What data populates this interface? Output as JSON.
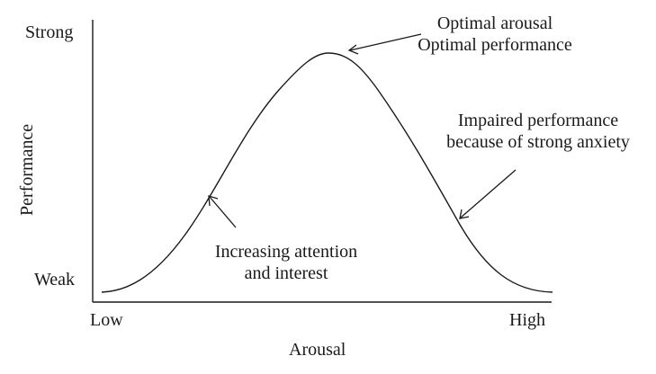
{
  "diagram": {
    "y_axis": {
      "title": "Performance",
      "top_label": "Strong",
      "bottom_label": "Weak"
    },
    "x_axis": {
      "title": "Arousal",
      "left_label": "Low",
      "right_label": "High"
    },
    "annotations": {
      "peak": {
        "line1": "Optimal arousal",
        "line2": "Optimal performance"
      },
      "right": {
        "line1": "Impaired performance",
        "line2": "because of strong anxiety"
      },
      "left": {
        "line1": "Increasing attention",
        "line2": "and interest"
      }
    },
    "colors": {
      "ink": "#1a1a1a",
      "background": "#ffffff"
    }
  }
}
